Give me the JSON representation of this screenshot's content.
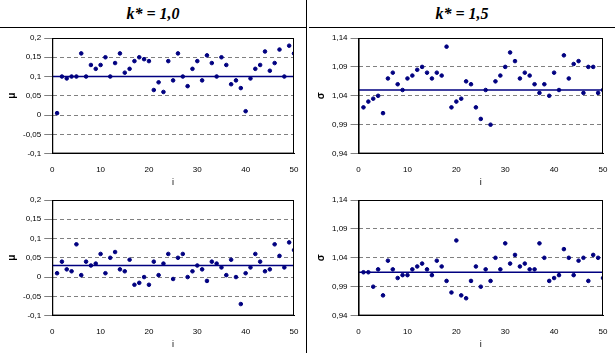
{
  "headers": [
    "k* = 1,0",
    "k* = 1,5"
  ],
  "chart_data": [
    {
      "type": "scatter",
      "xlabel": "i",
      "ylabel": "μ",
      "color": "#000080",
      "marker": "circle",
      "grid": true,
      "x": [
        1,
        2,
        3,
        4,
        5,
        6,
        7,
        8,
        9,
        10,
        11,
        12,
        13,
        14,
        15,
        16,
        17,
        18,
        19,
        20,
        21,
        22,
        23,
        24,
        25,
        26,
        27,
        28,
        29,
        30,
        31,
        32,
        33,
        34,
        35,
        36,
        37,
        38,
        39,
        40,
        41,
        42,
        43,
        44,
        45,
        46,
        47,
        48,
        49,
        50
      ],
      "values": [
        0.005,
        0.1,
        0.095,
        0.1,
        0.1,
        0.16,
        0.1,
        0.13,
        0.12,
        0.13,
        0.15,
        0.1,
        0.135,
        0.16,
        0.11,
        0.12,
        0.14,
        0.15,
        0.145,
        0.14,
        0.065,
        0.085,
        0.06,
        0.14,
        0.09,
        0.16,
        0.1,
        0.075,
        0.12,
        0.14,
        0.09,
        0.155,
        0.135,
        0.1,
        0.15,
        0.13,
        0.08,
        0.09,
        0.07,
        0.01,
        0.095,
        0.12,
        0.13,
        0.165,
        0.115,
        0.135,
        0.17,
        0.1,
        0.18,
        0.16
      ],
      "hline": 0.1,
      "xlim": [
        0,
        50
      ],
      "xticks": [
        0,
        10,
        20,
        30,
        40,
        50
      ],
      "ylim": [
        -0.1,
        0.2
      ],
      "yticks": [
        {
          "value": -0.1,
          "label": "-0,1"
        },
        {
          "value": -0.05,
          "label": "-0,05"
        },
        0,
        {
          "value": 0.05,
          "label": "0,05"
        },
        {
          "value": 0.1,
          "label": "0,1"
        },
        {
          "value": 0.15,
          "label": "0,15"
        },
        {
          "value": 0.2,
          "label": "0,2"
        }
      ]
    },
    {
      "type": "scatter",
      "xlabel": "i",
      "ylabel": "μ",
      "color": "#000080",
      "marker": "circle",
      "grid": true,
      "x": [
        1,
        2,
        3,
        4,
        5,
        6,
        7,
        8,
        9,
        10,
        11,
        12,
        13,
        14,
        15,
        16,
        17,
        18,
        19,
        20,
        21,
        22,
        23,
        24,
        25,
        26,
        27,
        28,
        29,
        30,
        31,
        32,
        33,
        34,
        35,
        36,
        37,
        38,
        39,
        40,
        41,
        42,
        43,
        44,
        45,
        46,
        47,
        48,
        49,
        50
      ],
      "values": [
        0.01,
        0.04,
        0.02,
        0.015,
        0.085,
        0.005,
        0.04,
        0.03,
        0.035,
        0.06,
        0.01,
        0.05,
        0.065,
        0.02,
        0.015,
        0.045,
        -0.02,
        -0.015,
        0.0,
        -0.02,
        0.04,
        0.005,
        0.035,
        0.06,
        -0.005,
        0.05,
        0.06,
        0.0,
        0.015,
        0.03,
        0.02,
        -0.01,
        0.04,
        0.035,
        0.025,
        0.005,
        0.045,
        0.0,
        -0.07,
        0.01,
        0.025,
        0.06,
        0.04,
        0.015,
        0.02,
        0.085,
        0.055,
        0.025,
        0.09,
        0.07
      ],
      "hline": 0.03,
      "xlim": [
        0,
        50
      ],
      "xticks": [
        0,
        10,
        20,
        30,
        40,
        50
      ],
      "ylim": [
        -0.1,
        0.2
      ],
      "yticks": [
        {
          "value": -0.1,
          "label": "-0,1"
        },
        {
          "value": -0.05,
          "label": "-0,05"
        },
        0,
        {
          "value": 0.05,
          "label": "0,05"
        },
        {
          "value": 0.1,
          "label": "0,1"
        },
        {
          "value": 0.15,
          "label": "0,15"
        },
        {
          "value": 0.2,
          "label": "0,2"
        }
      ]
    },
    {
      "type": "scatter",
      "xlabel": "i",
      "ylabel": "σ",
      "color": "#000080",
      "marker": "circle",
      "grid": true,
      "x": [
        1,
        2,
        3,
        4,
        5,
        6,
        7,
        8,
        9,
        10,
        11,
        12,
        13,
        14,
        15,
        16,
        17,
        18,
        19,
        20,
        21,
        22,
        23,
        24,
        25,
        26,
        27,
        28,
        29,
        30,
        31,
        32,
        33,
        34,
        35,
        36,
        37,
        38,
        39,
        40,
        41,
        42,
        43,
        44,
        45,
        46,
        47,
        48,
        49,
        50
      ],
      "values": [
        1.02,
        1.03,
        1.035,
        1.04,
        1.01,
        1.07,
        1.08,
        1.06,
        1.05,
        1.07,
        1.075,
        1.085,
        1.09,
        1.08,
        1.07,
        1.08,
        1.075,
        1.125,
        1.02,
        1.03,
        1.035,
        1.065,
        1.06,
        1.02,
        1.0,
        1.05,
        0.99,
        1.065,
        1.075,
        1.09,
        1.115,
        1.1,
        1.07,
        1.08,
        1.075,
        1.06,
        1.045,
        1.06,
        1.04,
        1.08,
        1.05,
        1.11,
        1.07,
        1.095,
        1.1,
        1.045,
        1.09,
        1.09,
        1.045,
        1.05
      ],
      "hline": 1.05,
      "xlim": [
        0,
        50
      ],
      "xticks": [
        0,
        10,
        20,
        30,
        40,
        50
      ],
      "ylim": [
        0.94,
        1.14
      ],
      "yticks": [
        {
          "value": 0.94,
          "label": "0,94"
        },
        {
          "value": 0.99,
          "label": "0,99"
        },
        {
          "value": 1.04,
          "label": "1,04"
        },
        {
          "value": 1.09,
          "label": "1,09"
        },
        {
          "value": 1.14,
          "label": "1,14"
        }
      ]
    },
    {
      "type": "scatter",
      "xlabel": "i",
      "ylabel": "σ",
      "color": "#000080",
      "marker": "circle",
      "grid": true,
      "x": [
        1,
        2,
        3,
        4,
        5,
        6,
        7,
        8,
        9,
        10,
        11,
        12,
        13,
        14,
        15,
        16,
        17,
        18,
        19,
        20,
        21,
        22,
        23,
        24,
        25,
        26,
        27,
        28,
        29,
        30,
        31,
        32,
        33,
        34,
        35,
        36,
        37,
        38,
        39,
        40,
        41,
        42,
        43,
        44,
        45,
        46,
        47,
        48,
        49,
        50
      ],
      "values": [
        1.015,
        1.015,
        0.99,
        1.02,
        0.975,
        1.035,
        1.02,
        1.005,
        1.01,
        1.01,
        1.02,
        1.025,
        1.03,
        1.02,
        1.01,
        1.035,
        1.025,
        1.0,
        0.98,
        1.07,
        0.975,
        0.97,
        1.0,
        1.025,
        0.99,
        1.02,
        1.0,
        1.04,
        1.02,
        1.065,
        1.03,
        1.045,
        1.025,
        1.03,
        1.02,
        1.02,
        1.065,
        1.04,
        1.0,
        1.005,
        1.01,
        1.055,
        1.04,
        1.01,
        1.035,
        1.04,
        1.0,
        1.045,
        1.04,
        1.005
      ],
      "hline": 1.015,
      "xlim": [
        0,
        50
      ],
      "xticks": [
        0,
        10,
        20,
        30,
        40,
        50
      ],
      "ylim": [
        0.94,
        1.14
      ],
      "yticks": [
        {
          "value": 0.94,
          "label": "0,94"
        },
        {
          "value": 0.99,
          "label": "0,99"
        },
        {
          "value": 1.04,
          "label": "1,04"
        },
        {
          "value": 1.09,
          "label": "1,09"
        },
        {
          "value": 1.14,
          "label": "1,14"
        }
      ]
    }
  ]
}
